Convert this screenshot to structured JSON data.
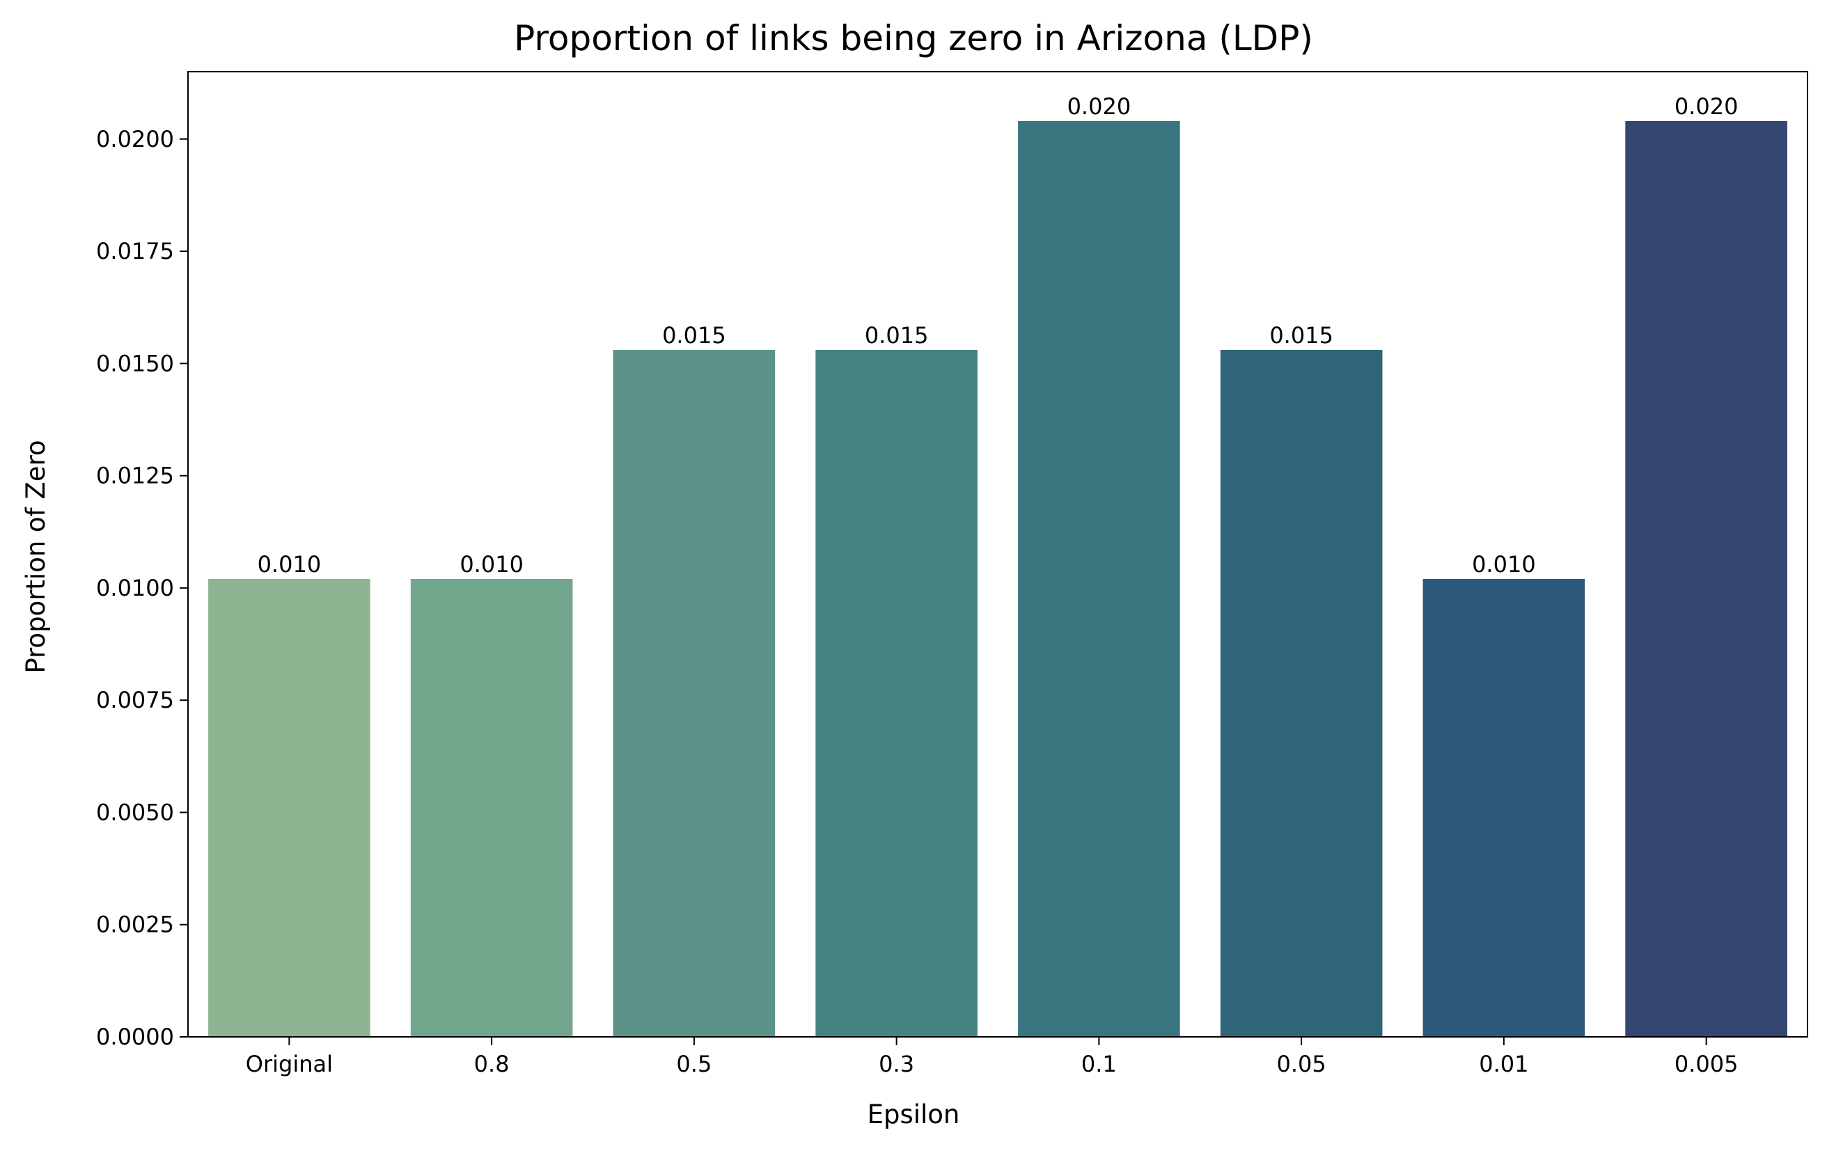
{
  "chart_data": {
    "type": "bar",
    "title": "Proportion of links being zero in Arizona (LDP)",
    "xlabel": "Epsilon",
    "ylabel": "Proportion of Zero",
    "categories": [
      "Original",
      "0.8",
      "0.5",
      "0.3",
      "0.1",
      "0.05",
      "0.01",
      "0.005"
    ],
    "values": [
      0.0102,
      0.0102,
      0.0153,
      0.0153,
      0.0204,
      0.0153,
      0.0102,
      0.0204
    ],
    "value_labels": [
      "0.010",
      "0.010",
      "0.015",
      "0.015",
      "0.020",
      "0.015",
      "0.010",
      "0.020"
    ],
    "colors": [
      "#8db592",
      "#72a78e",
      "#5b9388",
      "#478382",
      "#3a747e",
      "#2e6579",
      "#2d5778",
      "#34466f"
    ],
    "ylim": [
      0,
      0.0215
    ],
    "yticks": [
      0.0,
      0.0025,
      0.005,
      0.0075,
      0.01,
      0.0125,
      0.015,
      0.0175,
      0.02
    ],
    "ytick_labels": [
      "0.0000",
      "0.0025",
      "0.0050",
      "0.0075",
      "0.0100",
      "0.0125",
      "0.0150",
      "0.0175",
      "0.0200"
    ],
    "grid": false,
    "legend": "none"
  }
}
